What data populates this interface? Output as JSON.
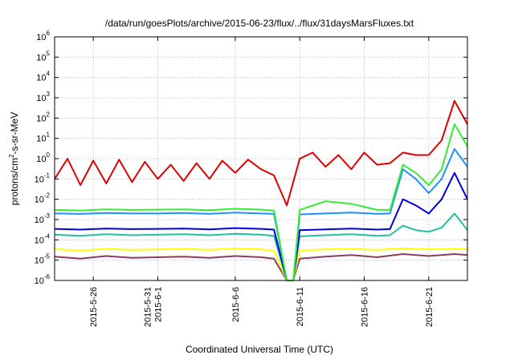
{
  "chart_data": {
    "type": "line",
    "title": "/data/run/goesPlots/archive/2015-06-23/flux/../flux/31daysMarsFluxes.txt",
    "xlabel": "Coordinated Universal Time (UTC)",
    "ylabel": "protons/cm²-s-sr-MeV",
    "yscale": "log",
    "ylim": [
      1e-06,
      1000000.0
    ],
    "xlim": [
      "2015-05-23",
      "2015-06-24"
    ],
    "grid": true,
    "x_ticks": [
      {
        "date": "2015-05-26",
        "label": [
          "2015-5-26"
        ]
      },
      {
        "date": "2015-05-31",
        "label": [
          "2015-5-31",
          "2015-6-1"
        ]
      },
      {
        "date": "2015-06-06",
        "label": [
          "2015-6-6"
        ]
      },
      {
        "date": "2015-06-11",
        "label": [
          "2015-6-11"
        ]
      },
      {
        "date": "2015-06-16",
        "label": [
          "2015-6-16"
        ]
      },
      {
        "date": "2015-06-21",
        "label": [
          "2015-6-21"
        ]
      }
    ],
    "y_ticks": [
      {
        "value": 1e-06,
        "base": "10",
        "exp": "-6"
      },
      {
        "value": 1e-05,
        "base": "10",
        "exp": "-5"
      },
      {
        "value": 0.0001,
        "base": "10",
        "exp": "-4"
      },
      {
        "value": 0.001,
        "base": "10",
        "exp": "-3"
      },
      {
        "value": 0.01,
        "base": "10",
        "exp": "-2"
      },
      {
        "value": 0.1,
        "base": "10",
        "exp": "-1"
      },
      {
        "value": 1,
        "base": "10",
        "exp": "0"
      },
      {
        "value": 10.0,
        "base": "10",
        "exp": "1"
      },
      {
        "value": 100.0,
        "base": "10",
        "exp": "2"
      },
      {
        "value": 1000.0,
        "base": "10",
        "exp": "3"
      },
      {
        "value": 10000.0,
        "base": "10",
        "exp": "4"
      },
      {
        "value": 100000.0,
        "base": "10",
        "exp": "5"
      },
      {
        "value": 1000000.0,
        "base": "10",
        "exp": "6"
      }
    ],
    "series": [
      {
        "color": "#8b3a62",
        "x": [
          "2015-05-23",
          "2015-05-25",
          "2015-05-27",
          "2015-05-29",
          "2015-05-31",
          "2015-06-02",
          "2015-06-04",
          "2015-06-06",
          "2015-06-08",
          "2015-06-09",
          "2015-06-10",
          "2015-06-10T12",
          "2015-06-11",
          "2015-06-13",
          "2015-06-15",
          "2015-06-17",
          "2015-06-19",
          "2015-06-21",
          "2015-06-23",
          "2015-06-24"
        ],
        "y": [
          1.5e-05,
          1.2e-05,
          1.6e-05,
          1.3e-05,
          1.4e-05,
          1.5e-05,
          1.3e-05,
          1.6e-05,
          1.4e-05,
          1.2e-05,
          1e-06,
          1e-06,
          1.2e-05,
          1.5e-05,
          1.8e-05,
          1.4e-05,
          2e-05,
          1.6e-05,
          2e-05,
          1.8e-05
        ]
      },
      {
        "color": "#ffff00",
        "x": [
          "2015-05-23",
          "2015-05-25",
          "2015-05-27",
          "2015-05-29",
          "2015-05-31",
          "2015-06-02",
          "2015-06-04",
          "2015-06-06",
          "2015-06-08",
          "2015-06-09",
          "2015-06-10",
          "2015-06-10T12",
          "2015-06-11",
          "2015-06-13",
          "2015-06-15",
          "2015-06-17",
          "2015-06-19",
          "2015-06-21",
          "2015-06-23",
          "2015-06-24"
        ],
        "y": [
          3.5e-05,
          3e-05,
          3.6e-05,
          3.2e-05,
          3.4e-05,
          3.6e-05,
          3.2e-05,
          3.8e-05,
          3.4e-05,
          3e-05,
          1e-06,
          1e-06,
          3e-05,
          3.4e-05,
          3.6e-05,
          3.2e-05,
          3.8e-05,
          3.4e-05,
          3.6e-05,
          3.5e-05
        ]
      },
      {
        "color": "#20c0a0",
        "x": [
          "2015-05-23",
          "2015-05-25",
          "2015-05-27",
          "2015-05-29",
          "2015-05-31",
          "2015-06-02",
          "2015-06-04",
          "2015-06-06",
          "2015-06-08",
          "2015-06-09",
          "2015-06-10",
          "2015-06-10T12",
          "2015-06-11",
          "2015-06-13",
          "2015-06-15",
          "2015-06-17",
          "2015-06-18",
          "2015-06-19",
          "2015-06-20",
          "2015-06-21",
          "2015-06-22",
          "2015-06-23",
          "2015-06-24"
        ],
        "y": [
          0.00018,
          0.00016,
          0.00019,
          0.00017,
          0.00018,
          0.00019,
          0.00017,
          0.0002,
          0.00018,
          0.00016,
          1e-06,
          1e-06,
          0.00015,
          0.00017,
          0.00019,
          0.00016,
          0.00017,
          0.0005,
          0.0003,
          0.00025,
          0.0004,
          0.002,
          0.0003
        ]
      },
      {
        "color": "#0000e0",
        "x": [
          "2015-05-23",
          "2015-05-25",
          "2015-05-27",
          "2015-05-29",
          "2015-05-31",
          "2015-06-02",
          "2015-06-04",
          "2015-06-06",
          "2015-06-08",
          "2015-06-09",
          "2015-06-10",
          "2015-06-10T12",
          "2015-06-11",
          "2015-06-13",
          "2015-06-15",
          "2015-06-17",
          "2015-06-18",
          "2015-06-19",
          "2015-06-20",
          "2015-06-21",
          "2015-06-22",
          "2015-06-23",
          "2015-06-24"
        ],
        "y": [
          0.00035,
          0.00032,
          0.00036,
          0.00034,
          0.00035,
          0.00036,
          0.00033,
          0.00038,
          0.00035,
          0.00032,
          1e-06,
          1e-06,
          0.0003,
          0.00033,
          0.00036,
          0.00032,
          0.00034,
          0.01,
          0.005,
          0.002,
          0.01,
          0.2,
          0.01
        ]
      },
      {
        "color": "#1e90ff",
        "x": [
          "2015-05-23",
          "2015-05-25",
          "2015-05-27",
          "2015-05-29",
          "2015-05-31",
          "2015-06-02",
          "2015-06-04",
          "2015-06-06",
          "2015-06-08",
          "2015-06-09",
          "2015-06-10",
          "2015-06-10T12",
          "2015-06-11",
          "2015-06-13",
          "2015-06-15",
          "2015-06-17",
          "2015-06-18",
          "2015-06-19",
          "2015-06-20",
          "2015-06-21",
          "2015-06-22",
          "2015-06-23",
          "2015-06-24"
        ],
        "y": [
          0.002,
          0.0019,
          0.0021,
          0.002,
          0.002,
          0.0021,
          0.0019,
          0.0022,
          0.002,
          0.0019,
          1e-06,
          1e-06,
          0.0018,
          0.002,
          0.0022,
          0.0019,
          0.002,
          0.3,
          0.1,
          0.02,
          0.1,
          3,
          0.4
        ]
      },
      {
        "color": "#33ee33",
        "x": [
          "2015-05-23",
          "2015-05-25",
          "2015-05-27",
          "2015-05-29",
          "2015-05-31",
          "2015-06-02",
          "2015-06-04",
          "2015-06-06",
          "2015-06-08",
          "2015-06-09",
          "2015-06-10",
          "2015-06-10T12",
          "2015-06-11",
          "2015-06-13",
          "2015-06-15",
          "2015-06-17",
          "2015-06-18",
          "2015-06-19",
          "2015-06-20",
          "2015-06-21",
          "2015-06-22",
          "2015-06-23",
          "2015-06-24"
        ],
        "y": [
          0.003,
          0.0028,
          0.0032,
          0.003,
          0.0031,
          0.0032,
          0.0029,
          0.0034,
          0.0031,
          0.0028,
          1e-06,
          1e-06,
          0.003,
          0.008,
          0.006,
          0.003,
          0.003,
          0.5,
          0.2,
          0.05,
          0.3,
          50.0,
          4
        ]
      },
      {
        "color": "#e00000",
        "x": [
          "2015-05-23",
          "2015-05-24",
          "2015-05-25",
          "2015-05-26",
          "2015-05-27",
          "2015-05-28",
          "2015-05-29",
          "2015-05-30",
          "2015-05-31",
          "2015-06-01",
          "2015-06-02",
          "2015-06-03",
          "2015-06-04",
          "2015-06-05",
          "2015-06-06",
          "2015-06-07",
          "2015-06-08",
          "2015-06-09",
          "2015-06-10",
          "2015-06-11",
          "2015-06-12",
          "2015-06-13",
          "2015-06-14",
          "2015-06-15",
          "2015-06-16",
          "2015-06-17",
          "2015-06-18",
          "2015-06-19",
          "2015-06-20",
          "2015-06-21",
          "2015-06-22",
          "2015-06-23",
          "2015-06-24"
        ],
        "y": [
          0.1,
          1.0,
          0.05,
          0.8,
          0.06,
          0.9,
          0.07,
          0.7,
          0.1,
          0.5,
          0.08,
          0.6,
          0.1,
          0.8,
          0.2,
          0.9,
          0.3,
          0.15,
          0.005,
          1.0,
          2.0,
          0.4,
          1.5,
          0.3,
          2.0,
          0.5,
          0.6,
          2.0,
          1.5,
          1.5,
          8.0,
          700,
          50
        ]
      }
    ]
  }
}
